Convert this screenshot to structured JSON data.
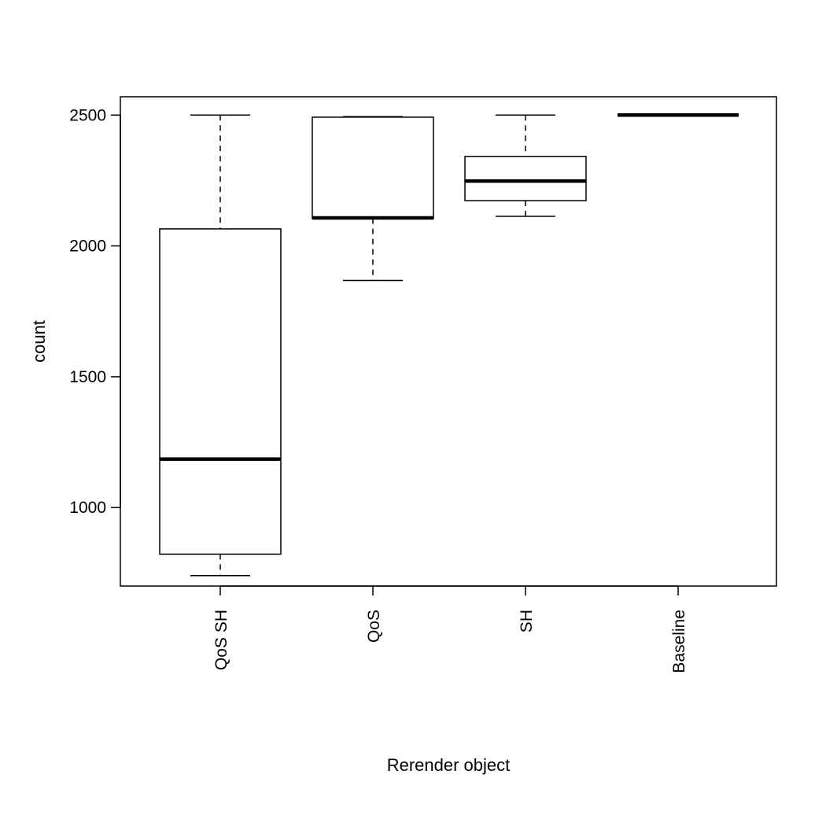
{
  "chart_data": {
    "type": "boxplot",
    "title": "",
    "xlabel": "Rerender object",
    "ylabel": "count",
    "categories": [
      "QoS SH",
      "QoS",
      "SH",
      "Baseline"
    ],
    "boxes": [
      {
        "category": "QoS SH",
        "whisker_low": 740,
        "q1": 822,
        "median": 1185,
        "q3": 2065,
        "whisker_high": 2500
      },
      {
        "category": "QoS",
        "whisker_low": 1868,
        "q1": 2105,
        "median": 2107,
        "q3": 2492,
        "whisker_high": 2494
      },
      {
        "category": "SH",
        "whisker_low": 2113,
        "q1": 2173,
        "median": 2248,
        "q3": 2342,
        "whisker_high": 2500
      },
      {
        "category": "Baseline",
        "whisker_low": 2500,
        "q1": 2500,
        "median": 2500,
        "q3": 2500,
        "whisker_high": 2500
      }
    ],
    "yticks": [
      1000,
      1500,
      2000,
      2500
    ],
    "ylim": [
      700,
      2570
    ],
    "x_tick_label_orientation": "vertical",
    "grid": false,
    "legend": "none"
  }
}
